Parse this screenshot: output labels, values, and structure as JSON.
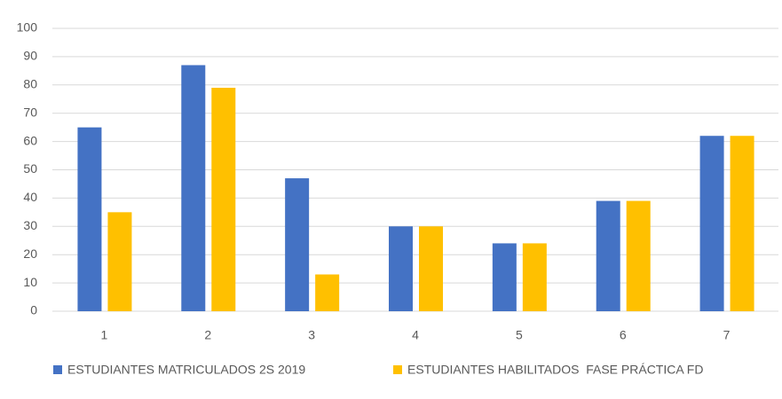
{
  "chart_data": {
    "type": "bar",
    "categories": [
      "1",
      "2",
      "3",
      "4",
      "5",
      "6",
      "7"
    ],
    "series": [
      {
        "name": "ESTUDIANTES MATRICULADOS 2S 2019",
        "color": "#4472c4",
        "values": [
          65,
          87,
          47,
          30,
          24,
          39,
          62
        ]
      },
      {
        "name": "ESTUDIANTES HABILITADOS  FASE PRÁCTICA FD",
        "color": "#ffc000",
        "values": [
          35,
          79,
          13,
          30,
          24,
          39,
          62
        ]
      }
    ],
    "ylim": [
      0,
      100
    ],
    "yticks": [
      0,
      10,
      20,
      30,
      40,
      50,
      60,
      70,
      80,
      90,
      100
    ],
    "grid": true,
    "legend": "bottom"
  }
}
